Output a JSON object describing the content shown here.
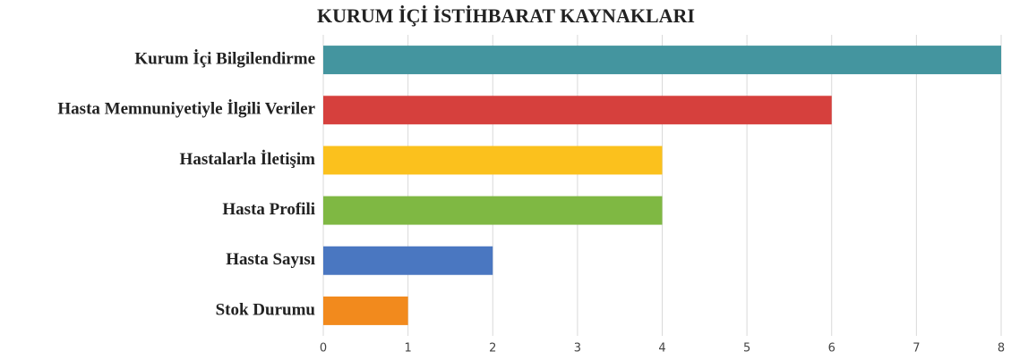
{
  "chart_data": {
    "type": "barh",
    "title": "KURUM İÇİ İSTİHBARAT KAYNAKLARI",
    "categories": [
      "Kurum İçi Bilgilendirme",
      "Hasta Memnuniyetiyle İlgili Veriler",
      "Hastalarla İletişim",
      "Hasta Profili",
      "Hasta Sayısı",
      "Stok Durumu"
    ],
    "values": [
      8,
      6,
      4,
      4,
      2,
      1
    ],
    "colors": [
      "#44959f",
      "#d6403d",
      "#fbc11d",
      "#7fb843",
      "#4a77c1",
      "#f28a1d"
    ],
    "xlim": [
      0,
      8
    ],
    "xticks": [
      0,
      1,
      2,
      3,
      4,
      5,
      6,
      7,
      8
    ],
    "grid": true
  }
}
